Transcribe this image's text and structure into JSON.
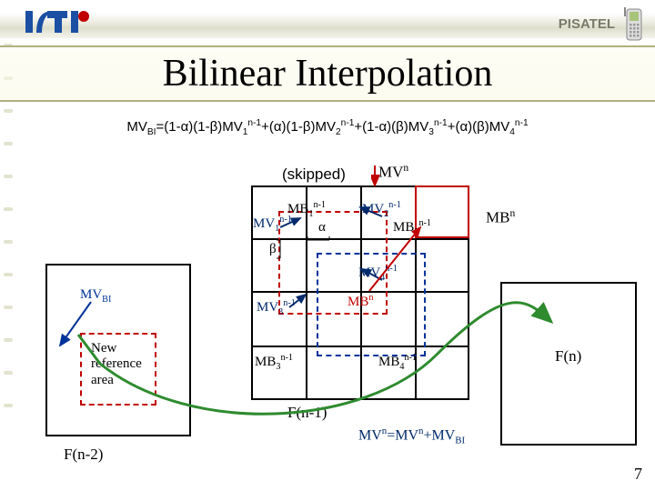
{
  "header": {
    "right_label": "PISATEL",
    "logo_primary_color": "#1a4fa3",
    "logo_accent_color": "#c00000"
  },
  "title": "Bilinear Interpolation",
  "formula": {
    "lhs": "MV",
    "lhs_sub": "BI",
    "rhs_html": "=(1-α)(1-β)MV<sub>1</sub><sup>n-1</sup>+(α)(1-β)MV<sub>2</sub><sup>n-1</sup>+(1-α)(β)MV<sub>3</sub><sup>n-1</sup>+(α)(β)MV<sub>4</sub><sup>n-1</sup>"
  },
  "diagram": {
    "skipped": "(skipped)",
    "MVn_top": "MV<sup>n</sup>",
    "MBn_right": "MB<sup>n</sup>",
    "MB1": "MB<sub>1</sub><sup>n-1</sup>",
    "MV1": "MV<sub>1</sub><sup>n-1</sup>",
    "MV2": "MV<sub>2</sub><sup>n-1</sup>",
    "MB2": "MB<sub>2</sub><sup>n-1</sup>",
    "MV3": "MV<sub>3</sub><sup>n-1</sup>",
    "MB3": "MB<sub>3</sub><sup>n-1</sup>",
    "MV4": "MV<sub>4</sub><sup>n-1</sup>",
    "MB4": "MB<sub>4</sub><sup>n-1</sup>",
    "MBn_center": "MB<sup>n</sup>",
    "alpha": "α",
    "beta": "β",
    "MVBI": "MV<sub>BI</sub>",
    "new_ref": "New\nreference\narea",
    "Fn": "F(n)",
    "Fn1": "F(n-1)",
    "Fn2": "F(n-2)",
    "identity": "MV<sup>n</sup>=MV<sup>n</sup>+MV<sub>BI</sub>"
  },
  "colors": {
    "red": "#c00000",
    "blue": "#003399",
    "navy": "#002a6c",
    "green": "#2e8b2e",
    "olive": "#b0b080"
  },
  "page_number": "7"
}
